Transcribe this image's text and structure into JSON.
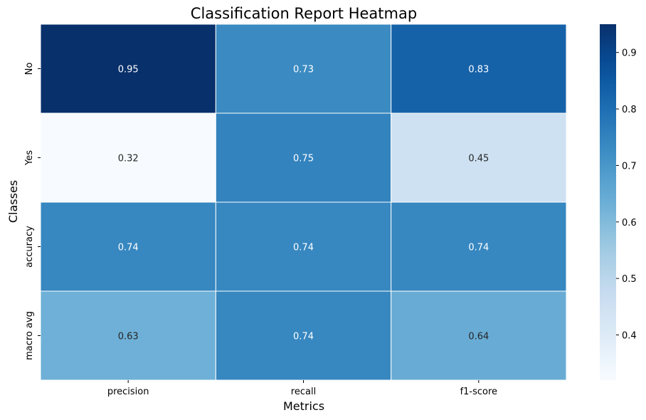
{
  "chart_data": {
    "type": "heatmap",
    "title": "Classification Report Heatmap",
    "xlabel": "Metrics",
    "ylabel": "Classes",
    "x_categories": [
      "precision",
      "recall",
      "f1-score"
    ],
    "y_categories": [
      "No",
      "Yes",
      "accuracy",
      "macro avg"
    ],
    "values": [
      [
        0.95,
        0.73,
        0.83
      ],
      [
        0.32,
        0.75,
        0.45
      ],
      [
        0.74,
        0.74,
        0.74
      ],
      [
        0.63,
        0.74,
        0.64
      ]
    ],
    "value_labels": [
      [
        "0.95",
        "0.73",
        "0.83"
      ],
      [
        "0.32",
        "0.75",
        "0.45"
      ],
      [
        "0.74",
        "0.74",
        "0.74"
      ],
      [
        "0.63",
        "0.74",
        "0.64"
      ]
    ],
    "colormap": "Blues",
    "color_range": [
      0.32,
      0.95
    ],
    "colorbar_ticks": [
      0.4,
      0.5,
      0.6,
      0.7,
      0.8,
      0.9
    ],
    "colorbar_tick_labels": [
      "0.4",
      "0.5",
      "0.6",
      "0.7",
      "0.8",
      "0.9"
    ],
    "colorbar_position": "right",
    "grid": false
  }
}
